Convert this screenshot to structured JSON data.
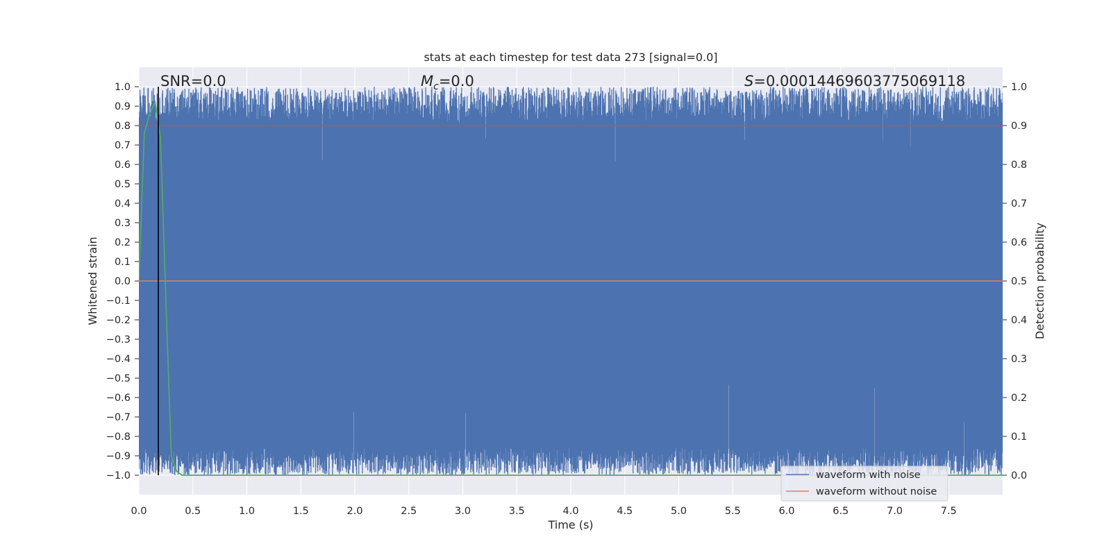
{
  "chart_data": {
    "type": "line",
    "title": "stats at each timestep for test data 273 [signal=0.0]",
    "xlabel": "Time (s)",
    "ylabel": "Whitened strain",
    "y2label": "Detection probability",
    "xlim": [
      0.0,
      8.0
    ],
    "ylim": [
      -1.1,
      1.1
    ],
    "y2lim": [
      -0.05,
      1.05
    ],
    "xticks": [
      "0.0",
      "0.5",
      "1.0",
      "1.5",
      "2.0",
      "2.5",
      "3.0",
      "3.5",
      "4.0",
      "4.5",
      "5.0",
      "5.5",
      "6.0",
      "6.5",
      "7.0",
      "7.5"
    ],
    "yticks": [
      "1.0",
      "0.9",
      "0.8",
      "0.7",
      "0.6",
      "0.5",
      "0.4",
      "0.3",
      "0.2",
      "0.1",
      "0.0",
      "−0.1",
      "−0.2",
      "−0.3",
      "−0.4",
      "−0.5",
      "−0.6",
      "−0.7",
      "−0.8",
      "−0.9",
      "−1.0"
    ],
    "y2ticks": [
      "1.0",
      "0.9",
      "0.8",
      "0.7",
      "0.6",
      "0.5",
      "0.4",
      "0.3",
      "0.2",
      "0.1",
      "0.0"
    ],
    "grid": true,
    "annotations": {
      "snr": "SNR=0.0",
      "mc_symbol": "M",
      "mc_sub": "c",
      "mc_value": "=0.0",
      "s_symbol": "S",
      "s_value": "=0.00014469603775069118"
    },
    "legend": {
      "position": "lower right",
      "entries": [
        "waveform with noise",
        "waveform without noise"
      ]
    },
    "series": [
      {
        "name": "waveform with noise",
        "color": "#4c72b0",
        "note": "whitened noise filling approximately [-1.0, 1.0] across 0–8 s"
      },
      {
        "name": "waveform without noise",
        "color": "#dd8452",
        "x": [
          0.0,
          8.0
        ],
        "y": [
          0.0,
          0.0
        ]
      }
    ],
    "detection_probability": {
      "color": "#55a868",
      "x": [
        0.0,
        0.05,
        0.1,
        0.15,
        0.2,
        0.25,
        0.3,
        0.35,
        0.4,
        8.0
      ],
      "y": [
        0.5,
        0.88,
        0.93,
        0.96,
        0.87,
        0.45,
        0.05,
        0.01,
        0.0,
        0.0
      ]
    },
    "threshold": {
      "value": 0.9,
      "axis": "right",
      "color": "#c44e52"
    },
    "marker_time": {
      "x": 0.18,
      "color": "#000000"
    }
  }
}
